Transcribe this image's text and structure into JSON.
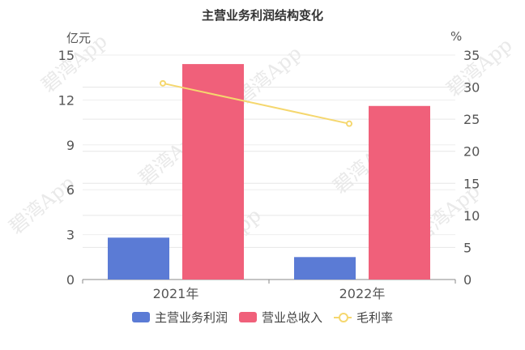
{
  "chart_data": {
    "type": "bar",
    "title": "主营业务利润结构变化",
    "categories": [
      "2021年",
      "2022年"
    ],
    "y_left": {
      "unit": "亿元",
      "ylim": [
        0,
        15
      ],
      "ticks": [
        0,
        3,
        6,
        9,
        12,
        15
      ]
    },
    "y_right": {
      "unit": "%",
      "ylim": [
        0,
        35
      ],
      "ticks": [
        0,
        5,
        10,
        15,
        20,
        25,
        30,
        35
      ]
    },
    "series": [
      {
        "name": "主营业务利润",
        "type": "bar",
        "axis": "left",
        "color": "#5b7bd5",
        "values": [
          2.8,
          1.5
        ]
      },
      {
        "name": "营业总收入",
        "type": "bar",
        "axis": "left",
        "color": "#f0607a",
        "values": [
          14.4,
          11.6
        ]
      },
      {
        "name": "毛利率",
        "type": "line",
        "axis": "right",
        "color": "#f5d76e",
        "values": [
          30.6,
          24.3
        ]
      }
    ],
    "grid": true,
    "legend_position": "bottom",
    "watermark": "碧湾App"
  }
}
